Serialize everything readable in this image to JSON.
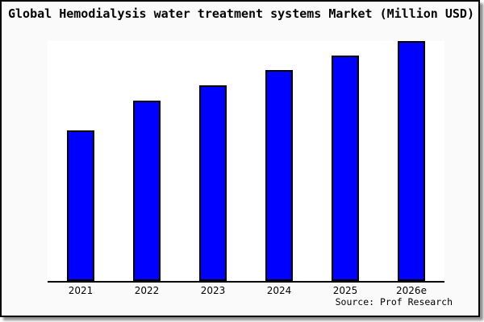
{
  "chart_data": {
    "type": "bar",
    "title": "Global Hemodialysis water treatment systems Market (Million USD)",
    "categories": [
      "2021",
      "2022",
      "2023",
      "2024",
      "2025",
      "2026e"
    ],
    "values": [
      62.8,
      75.2,
      81.5,
      87.9,
      94.0,
      100.0
    ],
    "value_scale": "relative height, tallest bar (2026e) = 100; no numeric y-axis shown",
    "xlabel": "",
    "ylabel": "",
    "y_axis_visible": false,
    "gridlines": false,
    "legend": "none",
    "bar_color": "#0000ff",
    "bar_border_color": "#000000",
    "plot_background": "#ffffff",
    "canvas_background": "#fafafa"
  },
  "footer": {
    "source": "Source: Prof Research"
  }
}
